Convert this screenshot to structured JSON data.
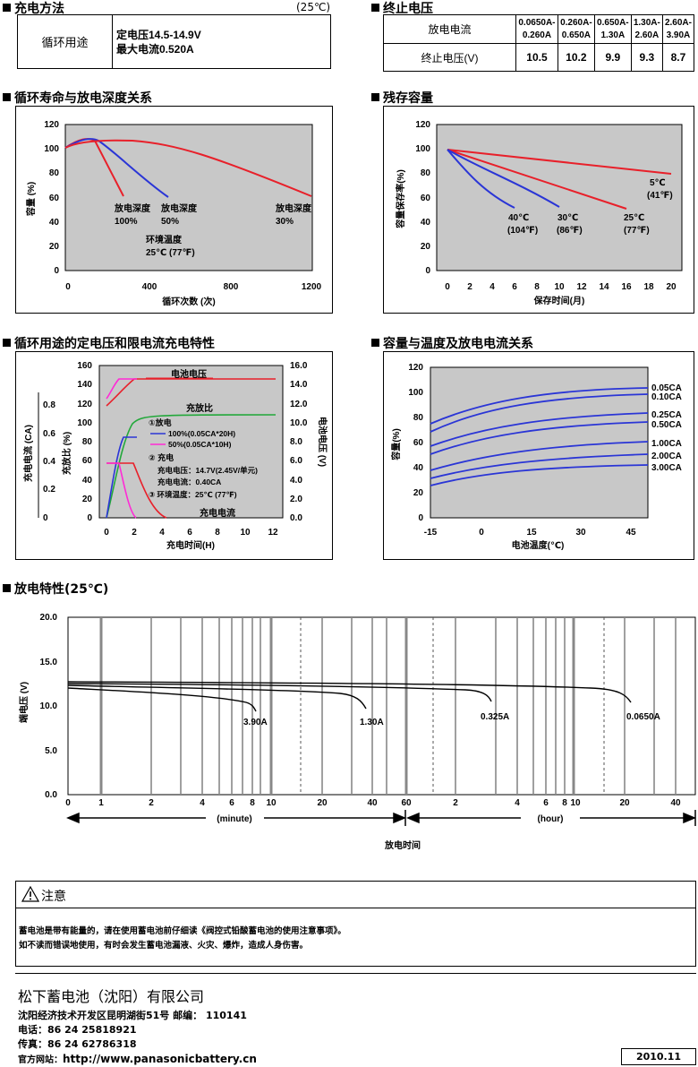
{
  "charge": {
    "title": "充电方法",
    "temp": "(25℃)",
    "row_label": "循环用途",
    "line1": "定电压14.5-14.9V",
    "line2": "最大电流0.520A"
  },
  "endv": {
    "title": "终止电压",
    "row1_label": "放电电流",
    "row2_label": "终止电压(V)",
    "ranges": [
      [
        "0.0650A-",
        "0.260A"
      ],
      [
        "0.260A-",
        "0.650A"
      ],
      [
        "0.650A-",
        "1.30A"
      ],
      [
        "1.30A-",
        "2.60A"
      ],
      [
        "2.60A-",
        "3.90A"
      ]
    ],
    "values": [
      "10.5",
      "10.2",
      "9.9",
      "9.3",
      "8.7"
    ]
  },
  "cycle": {
    "title": "循环寿命与放电深度关系",
    "ylabel": "容量 (%)",
    "xlabel": "循环次数 (次)",
    "yticks": [
      "0",
      "20",
      "40",
      "60",
      "80",
      "100",
      "120"
    ],
    "xticks": [
      "0",
      "400",
      "800",
      "1200"
    ],
    "labels": [
      {
        "l1": "放电深度",
        "l2": "100%"
      },
      {
        "l1": "放电深度",
        "l2": "50%"
      },
      {
        "l1": "放电深度",
        "l2": "30%"
      }
    ],
    "env1": "环境温度",
    "env2": "25℃ (77℉)"
  },
  "retention": {
    "title": "残存容量",
    "ylabel": "容量保存率(%)",
    "xlabel": "保存时间(月)",
    "yticks": [
      "0",
      "20",
      "40",
      "60",
      "80",
      "100",
      "120"
    ],
    "xticks": [
      "0",
      "2",
      "4",
      "6",
      "8",
      "10",
      "12",
      "14",
      "16",
      "18",
      "20"
    ],
    "labels": [
      {
        "l1": "5℃",
        "l2": "(41℉)"
      },
      {
        "l1": "40℃",
        "l2": "(104℉)"
      },
      {
        "l1": "30℃",
        "l2": "(86℉)"
      },
      {
        "l1": "25℃",
        "l2": "(77℉)"
      }
    ]
  },
  "chargechar": {
    "title": "循环用途的定电压和限电流充电特性",
    "yl1": "充电电流 (CA)",
    "yl2": "充放比 (%)",
    "yr": "电池电压 (V)",
    "xlabel": "充电时间(H)",
    "ca_ticks": [
      "0",
      "0.2",
      "0.4",
      "0.6",
      "0.8"
    ],
    "pct_ticks": [
      "0",
      "20",
      "40",
      "60",
      "80",
      "100",
      "120",
      "140",
      "160"
    ],
    "v_ticks": [
      "0.0",
      "2.0",
      "4.0",
      "6.0",
      "8.0",
      "10.0",
      "12.0",
      "14.0",
      "16.0"
    ],
    "xticks": [
      "0",
      "2",
      "4",
      "6",
      "8",
      "10",
      "12"
    ],
    "batt_label": "电池电压",
    "ratio_label": "充放比",
    "current_label": "充电电流",
    "legend": {
      "dis": "①放电",
      "dis1": "100%(0.05CA*20H)",
      "dis2": "50%(0.05CA*10H)",
      "chg": "② 充电",
      "chg1": "充电电压：14.7V(2.45V/单元)",
      "chg2": "充电电流：0.40CA",
      "env": "③ 环境温度：25℃ (77℉)"
    }
  },
  "temp": {
    "title": "容量与温度及放电电流关系",
    "ylabel": "容量(%)",
    "xlabel": "电池温度(℃)",
    "yticks": [
      "0",
      "20",
      "40",
      "60",
      "80",
      "100",
      "120"
    ],
    "xticks": [
      "-15",
      "0",
      "15",
      "30",
      "45"
    ],
    "series": [
      "0.05CA",
      "0.10CA",
      "0.25CA",
      "0.50CA",
      "1.00CA",
      "2.00CA",
      "3.00CA"
    ]
  },
  "discharge": {
    "title": "放电特性(25℃)",
    "ylabel": "端电压 (V)",
    "xlabel": "放电时间",
    "yticks": [
      "0.0",
      "5.0",
      "10.0",
      "15.0",
      "20.0"
    ],
    "xticks_min": [
      "0",
      "1",
      "2",
      "4",
      "6",
      "8",
      "10",
      "20",
      "40",
      "60"
    ],
    "xticks_hr": [
      "2",
      "4",
      "6",
      "8",
      "10",
      "20",
      "40"
    ],
    "minute": "(minute)",
    "hour": "(hour)",
    "curves": [
      "3.90A",
      "1.30A",
      "0.325A",
      "0.0650A"
    ]
  },
  "notice": {
    "title": "注意",
    "line1": "蓄电池是带有能量的，请在使用蓄电池前仔细读《阀控式铅酸蓄电池的使用注意事项》。",
    "line2": "如不读而错误地使用，有时会发生蓄电池漏液、火灾、爆炸，造成人身伤害。"
  },
  "footer": {
    "company": "松下蓄电池（沈阳）有限公司",
    "address": "沈阳经济技术开发区昆明湖街51号 邮编： 110141",
    "tel": "电话：86 24 25818921",
    "fax": "传真：86 24 62786318",
    "web_label": "官方网站：",
    "web": "http://www.panasonicbattery.cn",
    "date": "2010.11"
  },
  "colors": {
    "plot_bg": "#c8c8c8",
    "red": "#e8202a",
    "blue": "#2a35d6",
    "green": "#22a83a",
    "magenta": "#ff2ad6"
  }
}
